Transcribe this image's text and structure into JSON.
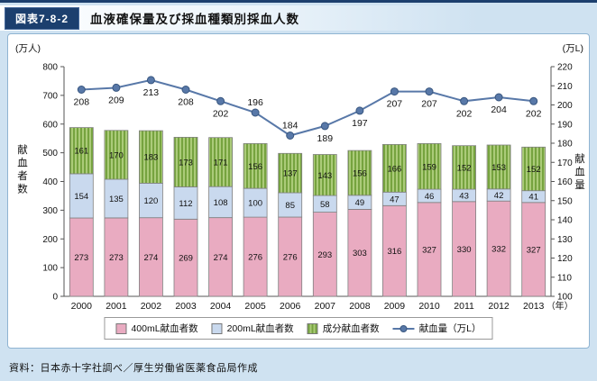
{
  "header": {
    "figure_label": "図表7-8-2",
    "badge_color": "#1c3f6e"
  },
  "footer": {
    "source": "資料：日本赤十字社調べ／厚生労働省医薬食品局作成"
  },
  "chart_data": {
    "type": "bar",
    "subtype": "stacked-bars-with-line-overlay",
    "title": "血液確保量及び採血種類別採血人数",
    "categories": [
      "2000",
      "2001",
      "2002",
      "2003",
      "2004",
      "2005",
      "2006",
      "2007",
      "2008",
      "2009",
      "2010",
      "2011",
      "2012",
      "2013"
    ],
    "x_axis_suffix": "（年）",
    "series": [
      {
        "name": "400mL献血者数",
        "color": "#e9abc1",
        "hatch": false,
        "values": [
          273,
          273,
          274,
          269,
          274,
          276,
          276,
          293,
          303,
          316,
          327,
          330,
          332,
          327
        ]
      },
      {
        "name": "200mL献血者数",
        "color": "#c9d9ee",
        "hatch": false,
        "values": [
          154,
          135,
          120,
          112,
          108,
          100,
          85,
          58,
          49,
          47,
          46,
          43,
          42,
          41
        ]
      },
      {
        "name": "成分献血者数",
        "color": "#9dc35e",
        "hatch": true,
        "values": [
          161,
          170,
          183,
          173,
          171,
          156,
          137,
          143,
          156,
          166,
          159,
          152,
          153,
          152
        ]
      }
    ],
    "line_series": {
      "name": "献血量（万L）",
      "color": "#5878a8",
      "axis": "right",
      "values": [
        208,
        209,
        213,
        208,
        202,
        196,
        184,
        189,
        197,
        207,
        207,
        202,
        204,
        202
      ],
      "label_above_indices": [
        5,
        6
      ]
    },
    "left_axis": {
      "unit": "(万人)",
      "label": "献血者数",
      "min": 0,
      "max": 800,
      "step": 100
    },
    "right_axis": {
      "unit": "(万L)",
      "label": "献血量",
      "min": 100,
      "max": 220,
      "step": 10
    },
    "legend_position": "bottom",
    "grid": false
  }
}
